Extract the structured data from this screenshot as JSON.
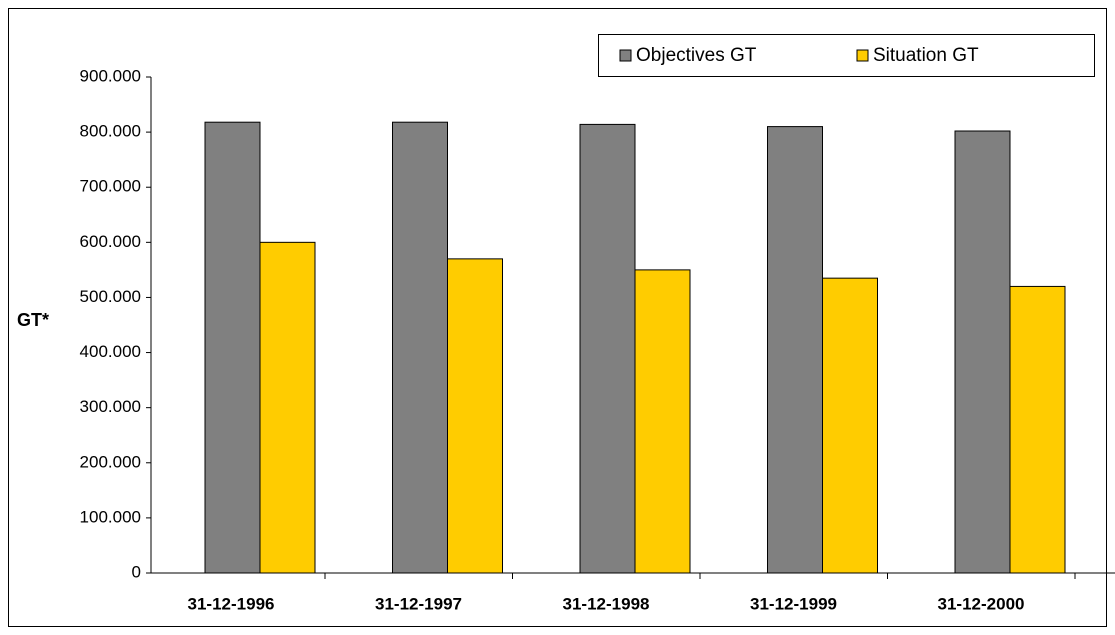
{
  "chart_data": {
    "type": "bar",
    "y_label": "GT*",
    "categories": [
      "31-12-1996",
      "31-12-1997",
      "31-12-1998",
      "31-12-1999",
      "31-12-2000"
    ],
    "series": [
      {
        "name": "Objectives GT",
        "color": "#808080",
        "values": [
          818000,
          818000,
          814000,
          810000,
          802000
        ]
      },
      {
        "name": "Situation GT",
        "color": "#ffcc00",
        "values": [
          600000,
          570000,
          550000,
          535000,
          520000
        ]
      }
    ],
    "ylim": [
      0,
      900000
    ],
    "yticks": [
      0,
      {
        "value": 100000,
        "label": "100.000"
      },
      {
        "value": 200000,
        "label": "200.000"
      },
      {
        "value": 300000,
        "label": "300.000"
      },
      {
        "value": 400000,
        "label": "400.000"
      },
      {
        "value": 500000,
        "label": "500.000"
      },
      {
        "value": 600000,
        "label": "600.000"
      },
      {
        "value": 700000,
        "label": "700.000"
      },
      {
        "value": 800000,
        "label": "800.000"
      },
      {
        "value": 900000,
        "label": "900.000"
      }
    ],
    "legend": "top-right"
  }
}
